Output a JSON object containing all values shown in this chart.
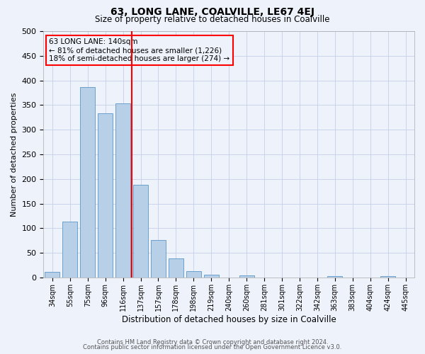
{
  "title": "63, LONG LANE, COALVILLE, LE67 4EJ",
  "subtitle": "Size of property relative to detached houses in Coalville",
  "xlabel": "Distribution of detached houses by size in Coalville",
  "ylabel": "Number of detached properties",
  "bar_labels": [
    "34sqm",
    "55sqm",
    "75sqm",
    "96sqm",
    "116sqm",
    "137sqm",
    "157sqm",
    "178sqm",
    "198sqm",
    "219sqm",
    "240sqm",
    "260sqm",
    "281sqm",
    "301sqm",
    "322sqm",
    "342sqm",
    "363sqm",
    "383sqm",
    "404sqm",
    "424sqm",
    "445sqm"
  ],
  "bar_values": [
    12,
    113,
    386,
    333,
    354,
    188,
    76,
    38,
    13,
    6,
    0,
    4,
    0,
    0,
    0,
    0,
    3,
    0,
    0,
    3,
    0
  ],
  "bar_color": "#b8cfe8",
  "bar_edge_color": "#5a96c8",
  "vline_x": 4.5,
  "vline_color": "red",
  "ylim": [
    0,
    500
  ],
  "yticks": [
    0,
    50,
    100,
    150,
    200,
    250,
    300,
    350,
    400,
    450,
    500
  ],
  "annotation_title": "63 LONG LANE: 140sqm",
  "annotation_line1": "← 81% of detached houses are smaller (1,226)",
  "annotation_line2": "18% of semi-detached houses are larger (274) →",
  "footer1": "Contains HM Land Registry data © Crown copyright and database right 2024.",
  "footer2": "Contains public sector information licensed under the Open Government Licence v3.0.",
  "bg_color": "#eef2fb",
  "grid_color": "#c5cfe8"
}
